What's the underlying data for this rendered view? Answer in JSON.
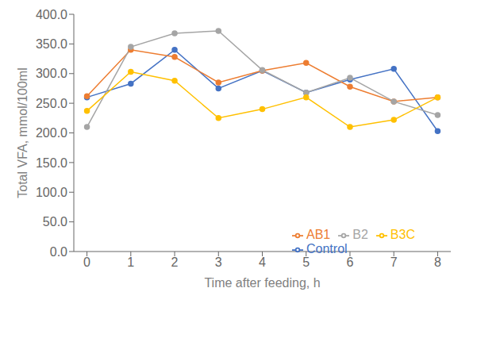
{
  "chart_data": {
    "type": "line",
    "x": [
      0,
      1,
      2,
      3,
      4,
      5,
      6,
      7,
      8
    ],
    "series": [
      {
        "name": "Control",
        "color": "#4472C4",
        "marker": "circle",
        "values": [
          260,
          283,
          340,
          275,
          305,
          268,
          290,
          308,
          203
        ]
      },
      {
        "name": "AB1",
        "color": "#ED7D31",
        "marker": "circle",
        "values": [
          262,
          340,
          328,
          285,
          305,
          318,
          278,
          253,
          260
        ]
      },
      {
        "name": "B2",
        "color": "#A5A5A5",
        "marker": "circle",
        "values": [
          210,
          345,
          368,
          372,
          306,
          268,
          293,
          253,
          230
        ]
      },
      {
        "name": "B3C",
        "color": "#FFC000",
        "marker": "circle",
        "values": [
          237,
          303,
          288,
          225,
          240,
          260,
          210,
          222,
          260
        ]
      }
    ],
    "xlabel": "Time after feeding, h",
    "ylabel": "Total VFA, mmol/100ml",
    "xlim": [
      -0.3,
      8.3
    ],
    "xticks": [
      0,
      1,
      2,
      3,
      4,
      5,
      6,
      7,
      8
    ],
    "ylim": [
      0,
      400
    ],
    "yticks": [
      {
        "value": 0,
        "label": "0.0"
      },
      {
        "value": 50,
        "label": "50.0"
      },
      {
        "value": 100,
        "label": "100.0"
      },
      {
        "value": 150,
        "label": "150.0"
      },
      {
        "value": 200,
        "label": "200.0"
      },
      {
        "value": 250,
        "label": "250.0"
      },
      {
        "value": 300,
        "label": "300.0"
      },
      {
        "value": 350,
        "label": "350.0"
      },
      {
        "value": 400,
        "label": "400.0"
      }
    ],
    "grid": false,
    "legend": "lower right"
  }
}
